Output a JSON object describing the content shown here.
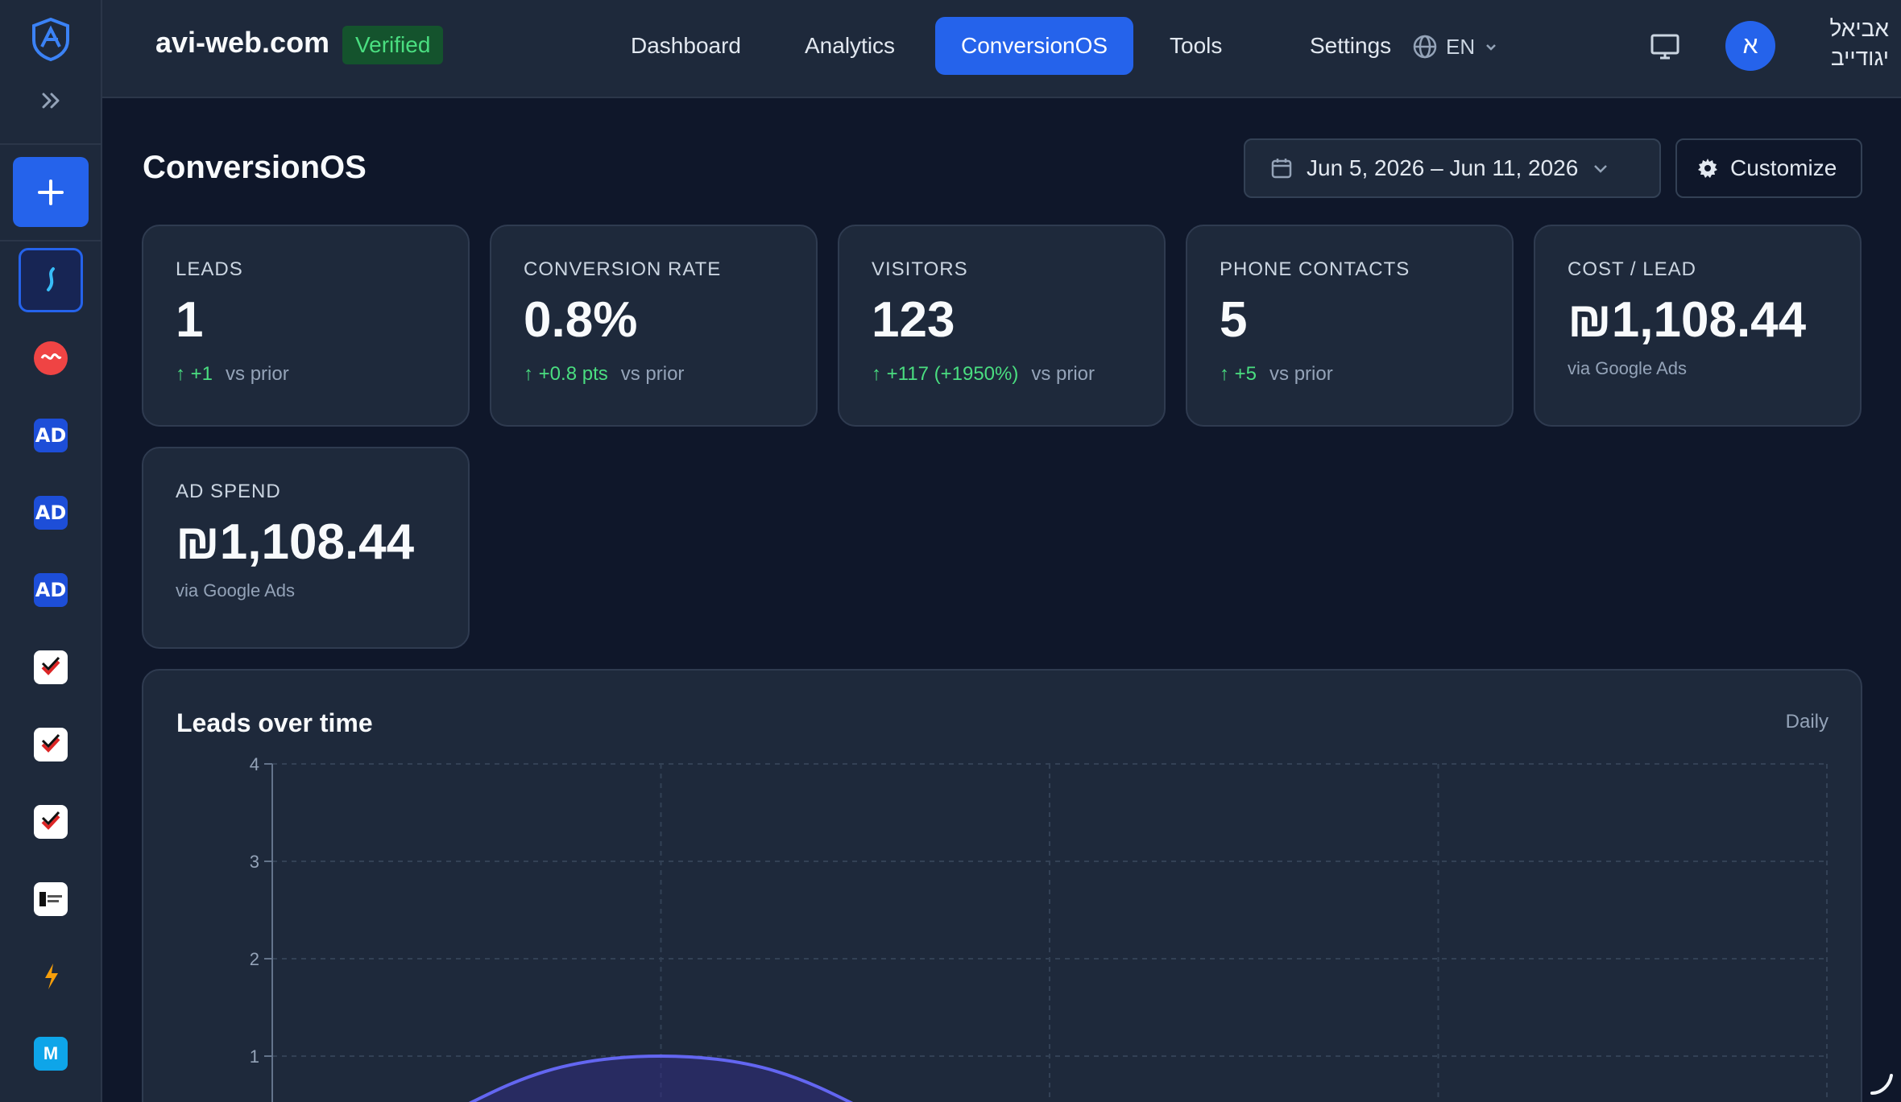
{
  "header": {
    "site": "avi-web.com",
    "verified": "Verified",
    "nav": [
      "Dashboard",
      "Analytics",
      "ConversionOS",
      "Tools",
      "Settings"
    ],
    "active_nav": "ConversionOS",
    "lang": "EN",
    "avatar_letter": "א",
    "user_name": "אביאל יגודייב"
  },
  "sidebar": {
    "items": [
      "project-icon",
      "heart-icon",
      "ad-icon",
      "ad-icon",
      "ad-icon",
      "check-icon",
      "check-icon",
      "check-icon",
      "landing-icon",
      "bolt-icon",
      "m-icon"
    ],
    "ad_label": "AD",
    "m_label": "M"
  },
  "main": {
    "title": "ConversionOS",
    "date_range": "Jun 5, 2026 – Jun 11, 2026",
    "customize": "Customize"
  },
  "cards": [
    {
      "label": "LEADS",
      "value": "1",
      "delta": "↑ +1",
      "suffix": "vs prior"
    },
    {
      "label": "CONVERSION RATE",
      "value": "0.8%",
      "delta": "↑ +0.8 pts",
      "suffix": "vs prior"
    },
    {
      "label": "VISITORS",
      "value": "123",
      "delta": "↑ +117 (+1950%)",
      "suffix": "vs prior"
    },
    {
      "label": "PHONE CONTACTS",
      "value": "5",
      "delta": "↑ +5",
      "suffix": "vs prior"
    },
    {
      "label": "COST / LEAD",
      "value": "₪1,108.44",
      "via": "via Google Ads"
    },
    {
      "label": "AD SPEND",
      "value": "₪1,108.44",
      "via": "via Google Ads"
    }
  ],
  "chart": {
    "title": "Leads over time",
    "period": "Daily"
  },
  "chart_data": {
    "type": "area",
    "title": "Leads over time",
    "yticks": [
      "4",
      "3",
      "2",
      "1"
    ],
    "ylim": [
      0,
      4
    ],
    "x": [
      0,
      1,
      2,
      3,
      4
    ],
    "values": [
      0,
      1,
      0,
      0,
      0
    ],
    "grid": true,
    "colors": {
      "line": "#6366f1",
      "fill": "#312e81"
    }
  },
  "colors": {
    "accent": "#2563eb",
    "bg": "#0f172a",
    "panel": "#1e293b",
    "positive": "#4ade80"
  }
}
